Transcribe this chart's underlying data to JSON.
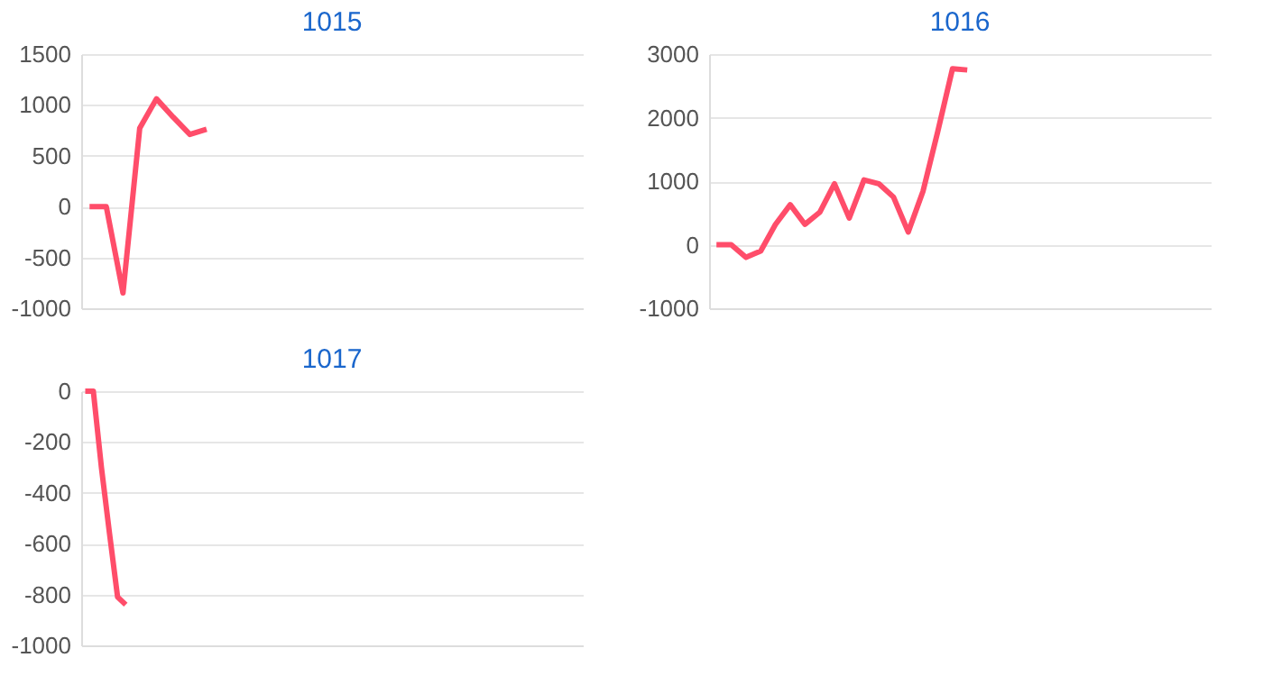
{
  "chart_data": [
    {
      "type": "line",
      "title": "1015",
      "categories": [
        null,
        null,
        null,
        null,
        null,
        null,
        null,
        null,
        null,
        null,
        null,
        null,
        null,
        null,
        null,
        null,
        null,
        null,
        null,
        null,
        null,
        null,
        null,
        null,
        null,
        null,
        null,
        null,
        null,
        null
      ],
      "series": [
        {
          "color": "#ff4d6a",
          "values": [
            0,
            0,
            -850,
            770,
            1060,
            880,
            710,
            760,
            null,
            null,
            null,
            null,
            null,
            null,
            null,
            null,
            null,
            null,
            null,
            null,
            null,
            null,
            null,
            null,
            null,
            null,
            null,
            null,
            null,
            null
          ]
        }
      ],
      "ylim": [
        -1000,
        1500
      ],
      "yticks": [
        -1000,
        -500,
        0,
        500,
        1000,
        1500
      ],
      "grid": "y",
      "tick_labels": "y",
      "legend": false,
      "marker": "none",
      "line_style": "solid"
    },
    {
      "type": "line",
      "title": "1016",
      "categories": [
        null,
        null,
        null,
        null,
        null,
        null,
        null,
        null,
        null,
        null,
        null,
        null,
        null,
        null,
        null,
        null,
        null,
        null,
        null,
        null,
        null,
        null,
        null,
        null,
        null,
        null,
        null,
        null,
        null,
        null,
        null,
        null,
        null,
        null
      ],
      "series": [
        {
          "color": "#ff4d6a",
          "values": [
            0,
            0,
            -200,
            -100,
            320,
            630,
            320,
            510,
            960,
            420,
            1020,
            960,
            750,
            200,
            840,
            1780,
            2770,
            2750,
            null,
            null,
            null,
            null,
            null,
            null,
            null,
            null,
            null,
            null,
            null,
            null,
            null,
            null,
            null,
            null
          ]
        }
      ],
      "ylim": [
        -1000,
        3000
      ],
      "yticks": [
        -1000,
        0,
        1000,
        2000,
        3000
      ],
      "grid": "y",
      "tick_labels": "y",
      "legend": false,
      "marker": "none",
      "line_style": "solid"
    },
    {
      "type": "line",
      "title": "1017",
      "categories": [
        null,
        null,
        null,
        null,
        null,
        null,
        null,
        null,
        null,
        null,
        null,
        null,
        null,
        null,
        null,
        null,
        null,
        null,
        null,
        null,
        null,
        null,
        null,
        null,
        null,
        null,
        null,
        null,
        null,
        null,
        null,
        null,
        null,
        null,
        null,
        null,
        null,
        null,
        null,
        null,
        null,
        null,
        null,
        null,
        null,
        null,
        null,
        null,
        null,
        null,
        null,
        null,
        null,
        null,
        null,
        null,
        null,
        null,
        null,
        null,
        null,
        null
      ],
      "series": [
        {
          "color": "#ff4d6a",
          "values": [
            0,
            0,
            -300,
            -560,
            -810,
            -840,
            null,
            null,
            null,
            null,
            null,
            null,
            null,
            null,
            null,
            null,
            null,
            null,
            null,
            null,
            null,
            null,
            null,
            null,
            null,
            null,
            null,
            null,
            null,
            null,
            null,
            null,
            null,
            null,
            null,
            null,
            null,
            null,
            null,
            null,
            null,
            null,
            null,
            null,
            null,
            null,
            null,
            null,
            null,
            null,
            null,
            null,
            null,
            null,
            null,
            null,
            null,
            null,
            null,
            null,
            null,
            null
          ]
        }
      ],
      "ylim": [
        -1000,
        0
      ],
      "yticks": [
        -1000,
        -800,
        -600,
        -400,
        -200,
        0
      ],
      "grid": "y",
      "tick_labels": "y",
      "legend": false,
      "marker": "none",
      "line_style": "solid"
    }
  ]
}
